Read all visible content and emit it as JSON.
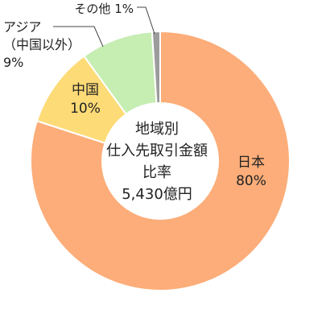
{
  "chart_data": {
    "type": "pie",
    "center_label": {
      "line1": "地域別",
      "line2": "仕入先取引金額",
      "line3": "比率",
      "total": "5,430億円"
    },
    "slices": [
      {
        "label": "日本",
        "label_lines": [
          "日本"
        ],
        "value": 80,
        "value_text": "80%",
        "color": "#FCAD79"
      },
      {
        "label": "中国",
        "label_lines": [
          "中国"
        ],
        "value": 10,
        "value_text": "10%",
        "color": "#FDDB77"
      },
      {
        "label": "アジア（中国以外）",
        "label_lines": [
          "アジア",
          "（中国以外）"
        ],
        "value": 9,
        "value_text": "9%",
        "color": "#C6EDB2"
      },
      {
        "label": "その他",
        "label_lines": [
          "その他"
        ],
        "value": 1,
        "value_text": "1%",
        "color": "#9C9C9C"
      }
    ]
  }
}
